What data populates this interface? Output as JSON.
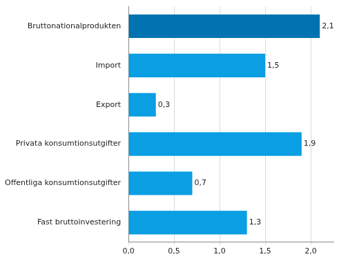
{
  "chart_data": {
    "type": "bar",
    "orientation": "horizontal",
    "categories": [
      "Bruttonationalprodukten",
      "Import",
      "Export",
      "Privata konsumtionsutgifter",
      "Offentliga konsumtionsutgifter",
      "Fast bruttoinvestering"
    ],
    "values": [
      2.1,
      1.5,
      0.3,
      1.9,
      0.7,
      1.3
    ],
    "value_labels": [
      "2,1",
      "1,5",
      "0,3",
      "1,9",
      "0,7",
      "1,3"
    ],
    "colors": [
      "#0073b0",
      "#0a9ee3",
      "#0a9ee3",
      "#0a9ee3",
      "#0a9ee3",
      "#0a9ee3"
    ],
    "xlim": [
      0,
      2.25
    ],
    "xticks": [
      {
        "value": 0,
        "label": "0,0"
      },
      {
        "value": 0.5,
        "label": "0,5"
      },
      {
        "value": 1,
        "label": "1,0"
      },
      {
        "value": 1.5,
        "label": "1,5"
      },
      {
        "value": 2,
        "label": "2,0"
      }
    ],
    "grid": true,
    "data_labels": true
  }
}
